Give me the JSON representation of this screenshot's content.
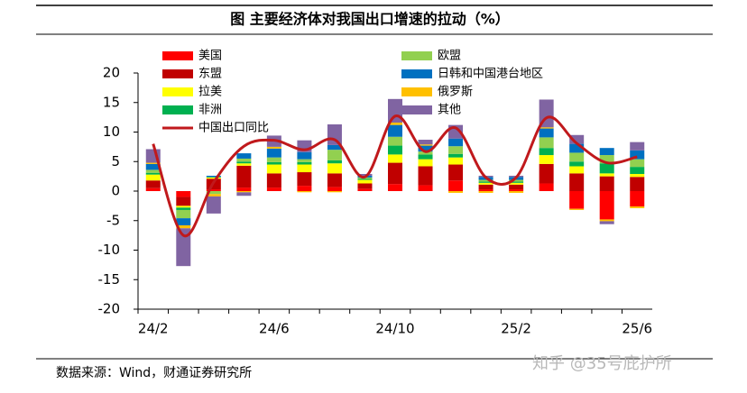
{
  "chart_data": {
    "type": "bar",
    "title": "图  主要经济体对我国出口增速的拉动（%）",
    "categories": [
      "24/2",
      null,
      null,
      null,
      "24/6",
      null,
      null,
      null,
      "24/10",
      null,
      null,
      null,
      "25/2",
      null,
      null,
      null,
      "25/6"
    ],
    "series": [
      {
        "name": "美国",
        "color": "#ff0000",
        "values": [
          0.5,
          -1.0,
          0.3,
          0.6,
          0.6,
          0.9,
          0.7,
          0.4,
          1.2,
          1.0,
          1.8,
          0.3,
          0.3,
          1.3,
          -3.0,
          -4.8,
          -2.6
        ]
      },
      {
        "name": "东盟",
        "color": "#c00000",
        "values": [
          1.3,
          -1.5,
          1.8,
          3.7,
          2.4,
          2.3,
          2.3,
          0.9,
          3.6,
          3.2,
          2.7,
          0.8,
          0.8,
          3.3,
          3.0,
          2.5,
          2.4
        ]
      },
      {
        "name": "拉美",
        "color": "#ffff00",
        "values": [
          1.0,
          -0.3,
          0.2,
          0.4,
          1.5,
          1.3,
          1.7,
          0.6,
          1.4,
          1.2,
          1.2,
          0.3,
          0.3,
          1.5,
          1.2,
          0.5,
          0.5
        ]
      },
      {
        "name": "非洲",
        "color": "#00b050",
        "values": [
          0.3,
          -0.4,
          0.1,
          0.3,
          0.4,
          0.4,
          0.5,
          0.2,
          1.5,
          0.8,
          0.6,
          0.2,
          0.2,
          1.2,
          0.8,
          1.7,
          1.2
        ]
      },
      {
        "name": "欧盟",
        "color": "#92d050",
        "values": [
          0.5,
          -1.4,
          -0.5,
          0.5,
          0.8,
          0.5,
          1.8,
          0.2,
          1.5,
          0.5,
          1.3,
          0.3,
          0.3,
          1.8,
          1.5,
          1.4,
          1.3
        ]
      },
      {
        "name": "日韩和中国港台地区",
        "color": "#0070c0",
        "values": [
          1.0,
          -1.2,
          0.2,
          0.9,
          1.5,
          1.2,
          0.8,
          0.3,
          2.0,
          1.0,
          1.3,
          0.5,
          0.5,
          1.5,
          1.5,
          1.2,
          1.5
        ]
      },
      {
        "name": "俄罗斯",
        "color": "#ffc000",
        "values": [
          0.2,
          -0.5,
          -0.4,
          -0.2,
          0.3,
          -0.2,
          -0.2,
          0.0,
          0.4,
          0.2,
          -0.3,
          -0.3,
          -0.3,
          0.2,
          -0.2,
          -0.3,
          -0.3
        ]
      },
      {
        "name": "其他",
        "color": "#8064a2",
        "values": [
          2.3,
          -6.4,
          -2.9,
          -0.6,
          1.9,
          2.0,
          3.5,
          0.3,
          4.0,
          0.8,
          2.3,
          0.2,
          0.2,
          4.7,
          1.5,
          -0.5,
          1.4
        ]
      }
    ],
    "line": {
      "name": "中国出口同比",
      "color": "#c0191c",
      "values": [
        8.0,
        -7.5,
        1.5,
        7.6,
        8.6,
        7.0,
        8.7,
        2.4,
        12.7,
        6.7,
        10.7,
        2.3,
        2.3,
        12.4,
        8.1,
        4.8,
        5.8
      ]
    },
    "ylim": [
      -20,
      20
    ],
    "yticks": [
      -20,
      -15,
      -10,
      -5,
      0,
      5,
      10,
      15,
      20
    ],
    "source": "数据来源：Wind，财通证券研究所",
    "watermark": "知乎 @35号庇护所"
  }
}
